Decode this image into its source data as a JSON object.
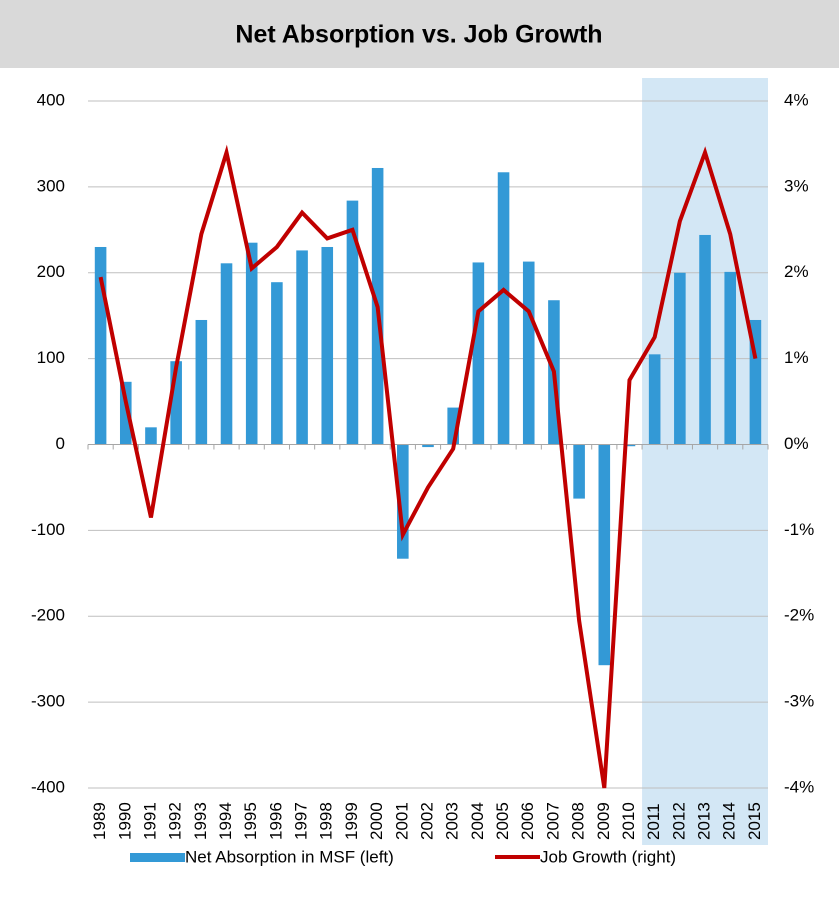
{
  "chart_data": {
    "type": "bar-line",
    "title": "Net Absorption vs. Job Growth",
    "categories": [
      "1989",
      "1990",
      "1991",
      "1992",
      "1993",
      "1994",
      "1995",
      "1996",
      "1997",
      "1998",
      "1999",
      "2000",
      "2001",
      "2002",
      "2003",
      "2004",
      "2005",
      "2006",
      "2007",
      "2008",
      "2009",
      "2010",
      "2011",
      "2012",
      "2013",
      "2014",
      "2015"
    ],
    "series": [
      {
        "name": "Net Absorption in MSF (left)",
        "type": "bar",
        "color": "#3399d6",
        "values": [
          230,
          73,
          20,
          97,
          145,
          211,
          235,
          189,
          226,
          230,
          284,
          322,
          -133,
          -3,
          43,
          212,
          317,
          213,
          168,
          -63,
          -257,
          -2,
          105,
          200,
          244,
          201,
          145
        ]
      },
      {
        "name": "Job Growth (right)",
        "type": "line",
        "color": "#c00000",
        "axis": "y2",
        "values": [
          1.95,
          0.5,
          -0.85,
          0.9,
          2.45,
          3.4,
          2.05,
          2.3,
          2.7,
          2.4,
          2.5,
          1.6,
          -1.05,
          -0.5,
          -0.05,
          1.55,
          1.8,
          1.55,
          0.85,
          -2.05,
          -4.0,
          0.75,
          1.25,
          2.6,
          3.4,
          2.45,
          1.0
        ]
      }
    ],
    "ylim": [
      -400,
      400
    ],
    "yticks": [
      400,
      300,
      200,
      100,
      0,
      -100,
      -200,
      -300,
      -400
    ],
    "y2lim": [
      -4,
      4
    ],
    "y2ticks": [
      {
        "value": 4,
        "label": "4%"
      },
      {
        "value": 3,
        "label": "3%"
      },
      {
        "value": 2,
        "label": "2%"
      },
      {
        "value": 1,
        "label": "1%"
      },
      {
        "value": 0,
        "label": "0%"
      },
      {
        "value": -1,
        "label": "-1%"
      },
      {
        "value": -2,
        "label": "-2%"
      },
      {
        "value": -3,
        "label": "-3%"
      },
      {
        "value": -4,
        "label": "-4%"
      }
    ],
    "grid": true,
    "highlight": [
      "2011",
      "2015"
    ],
    "highlight_color": "#d3e7f5",
    "legend": "bottom"
  }
}
